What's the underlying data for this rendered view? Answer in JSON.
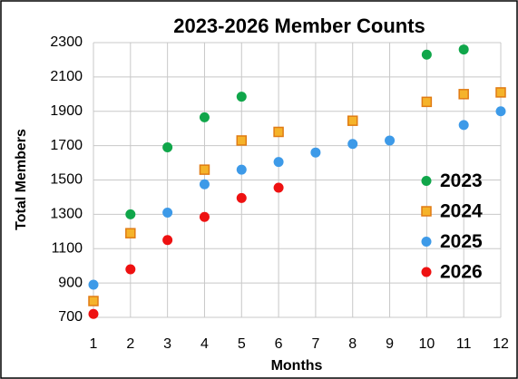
{
  "chart_data": {
    "type": "scatter",
    "title": "2023-2026 Member Counts",
    "xlabel": "Months",
    "ylabel": "Total Members",
    "xlim": [
      1,
      12
    ],
    "xticks": [
      1,
      2,
      3,
      4,
      5,
      6,
      7,
      8,
      9,
      10,
      11,
      12
    ],
    "ylim": [
      700,
      2300
    ],
    "yticks": [
      700,
      900,
      1100,
      1300,
      1500,
      1700,
      1900,
      2100,
      2300
    ],
    "grid": true,
    "legend": "lower right",
    "series": [
      {
        "name": "2023",
        "color": "#10a64a",
        "marker": "circle",
        "x": [
          2,
          3,
          4,
          5,
          10,
          11
        ],
        "values": [
          1300,
          1690,
          1865,
          1985,
          2230,
          2260
        ]
      },
      {
        "name": "2024",
        "color": "#f5b32a",
        "marker": "square",
        "x": [
          1,
          2,
          4,
          5,
          6,
          8,
          10,
          11,
          12
        ],
        "values": [
          795,
          1190,
          1560,
          1730,
          1780,
          1845,
          1955,
          2000,
          2010
        ]
      },
      {
        "name": "2025",
        "color": "#3d9ae8",
        "marker": "circle",
        "x": [
          1,
          3,
          4,
          5,
          6,
          7,
          8,
          9,
          11,
          12
        ],
        "values": [
          890,
          1310,
          1475,
          1560,
          1605,
          1660,
          1710,
          1730,
          1820,
          1900
        ]
      },
      {
        "name": "2026",
        "color": "#ee1111",
        "marker": "circle",
        "x": [
          1,
          2,
          3,
          4,
          5,
          6
        ],
        "values": [
          720,
          980,
          1150,
          1285,
          1395,
          1455
        ]
      }
    ]
  }
}
